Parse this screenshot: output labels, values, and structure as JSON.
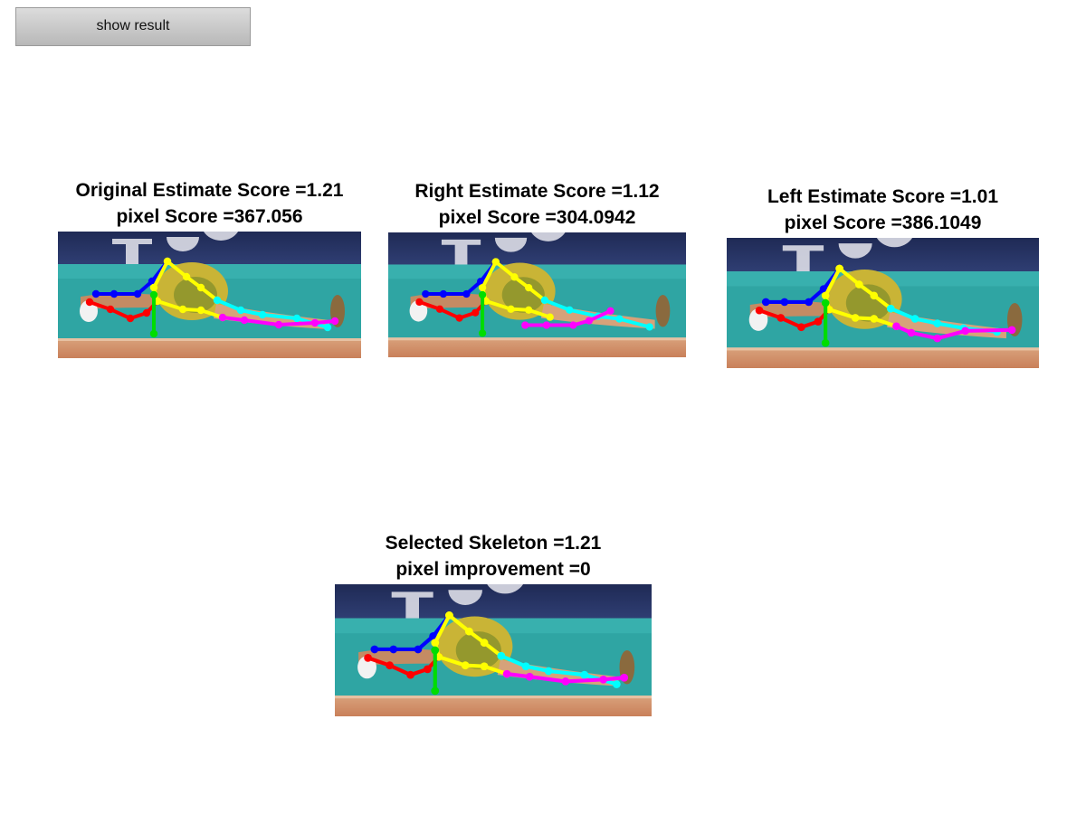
{
  "controls": {
    "show_result_label": "show result"
  },
  "panels": {
    "original": {
      "title_line1": "Original Estimate Score =1.21",
      "title_line2": "pixel Score =367.056"
    },
    "right": {
      "title_line1": "Right Estimate Score =1.12",
      "title_line2": "pixel Score =304.0942"
    },
    "left": {
      "title_line1": "Left Estimate Score =1.01",
      "title_line2": "pixel Score =386.1049"
    },
    "selected": {
      "title_line1": "Selected Skeleton =1.21",
      "title_line2": "pixel improvement =0"
    }
  },
  "limb_colors": {
    "left_arm": "#0000ff",
    "right_arm": "#ff0000",
    "torso": "#ffff00",
    "left_leg": "#00ffff",
    "right_leg": "#ff00ff",
    "head": "#00dd00"
  }
}
